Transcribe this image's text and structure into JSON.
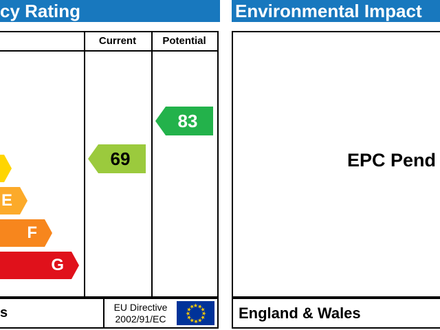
{
  "colors": {
    "header_blue": "#1878be",
    "border": "#000000",
    "flag_blue": "#003399",
    "flag_star": "#ffcc00"
  },
  "energy_panel": {
    "header": "cy Rating",
    "col_current": "Current",
    "col_potential": "Potential",
    "bands": [
      {
        "letter": "",
        "color": "#ffd500"
      },
      {
        "letter": "E",
        "color": "#fcaa2a"
      },
      {
        "letter": "F",
        "color": "#f7861d"
      },
      {
        "letter": "G",
        "color": "#e0111b"
      }
    ],
    "current": {
      "value": "69",
      "color": "#9bca3d",
      "text_color": "#000000"
    },
    "potential": {
      "value": "83",
      "color": "#23b24b",
      "text_color": "#ffffff"
    },
    "footer": {
      "cropped_text": "s",
      "directive_line1": "EU Directive",
      "directive_line2": "2002/91/EC",
      "flag_star_glyph": "★"
    }
  },
  "impact_panel": {
    "header": "Environmental Impact",
    "body_text": "EPC Pend",
    "footer_text": "England & Wales"
  },
  "chart_data": {
    "type": "bar",
    "title": "cy Rating",
    "columns": [
      "Current",
      "Potential"
    ],
    "bands": [
      {
        "letter": "",
        "color": "#ffd500"
      },
      {
        "letter": "E",
        "color": "#fcaa2a"
      },
      {
        "letter": "F",
        "color": "#f7861d"
      },
      {
        "letter": "G",
        "color": "#e0111b"
      }
    ],
    "current_rating": 69,
    "potential_rating": 83,
    "legend_position": "none",
    "grid": false
  }
}
